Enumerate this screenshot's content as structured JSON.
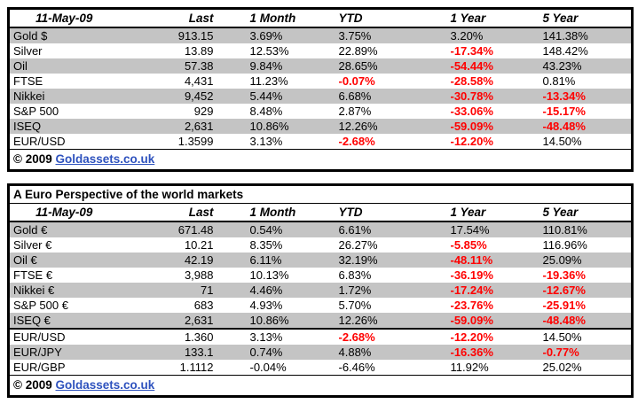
{
  "colors": {
    "negative_red": "#ff0000",
    "row_band_gray": "#c4c4c4",
    "link_blue": "#2e52be",
    "border_black": "#000000"
  },
  "chart_data": [
    {
      "type": "table",
      "name": "world-markets-usd",
      "columns": [
        "11-May-09",
        "Last",
        "1 Month",
        "YTD",
        "1 Year",
        "5 Year"
      ],
      "rows": [
        {
          "cells": [
            "Gold $",
            "913.15",
            "3.69%",
            "3.75%",
            "3.20%",
            "141.38%"
          ],
          "red": []
        },
        {
          "cells": [
            "Silver",
            "13.89",
            "12.53%",
            "22.89%",
            "-17.34%",
            "148.42%"
          ],
          "red": [
            4
          ]
        },
        {
          "cells": [
            "Oil",
            "57.38",
            "9.84%",
            "28.65%",
            "-54.44%",
            "43.23%"
          ],
          "red": [
            4
          ]
        },
        {
          "cells": [
            "FTSE",
            "4,431",
            "11.23%",
            "-0.07%",
            "-28.58%",
            "0.81%"
          ],
          "red": [
            3,
            4
          ]
        },
        {
          "cells": [
            "Nikkei",
            "9,452",
            "5.44%",
            "6.68%",
            "-30.78%",
            "-13.34%"
          ],
          "red": [
            4,
            5
          ]
        },
        {
          "cells": [
            "S&P 500",
            "929",
            "8.48%",
            "2.87%",
            "-33.06%",
            "-15.17%"
          ],
          "red": [
            4,
            5
          ]
        },
        {
          "cells": [
            "ISEQ",
            "2,631",
            "10.86%",
            "12.26%",
            "-59.09%",
            "-48.48%"
          ],
          "red": [
            4,
            5
          ]
        },
        {
          "cells": [
            "EUR/USD",
            "1.3599",
            "3.13%",
            "-2.68%",
            "-12.20%",
            "14.50%"
          ],
          "red": [
            3,
            4
          ]
        }
      ],
      "footer_copyright": "© 2009",
      "footer_link": "Goldassets.co.uk"
    },
    {
      "type": "table",
      "name": "world-markets-euro",
      "title": "A Euro Perspective of the world markets",
      "columns": [
        "11-May-09",
        "Last",
        "1 Month",
        "YTD",
        "1 Year",
        "5 Year"
      ],
      "rows": [
        {
          "cells": [
            "Gold €",
            "671.48",
            "0.54%",
            "6.61%",
            "17.54%",
            "110.81%"
          ],
          "red": []
        },
        {
          "cells": [
            "Silver €",
            "10.21",
            "8.35%",
            "26.27%",
            "-5.85%",
            "116.96%"
          ],
          "red": [
            4
          ]
        },
        {
          "cells": [
            "Oil €",
            "42.19",
            "6.11%",
            "32.19%",
            "-48.11%",
            "25.09%"
          ],
          "red": [
            4
          ]
        },
        {
          "cells": [
            "FTSE €",
            "3,988",
            "10.13%",
            "6.83%",
            "-36.19%",
            "-19.36%"
          ],
          "red": [
            4,
            5
          ]
        },
        {
          "cells": [
            "Nikkei €",
            "71",
            "4.46%",
            "1.72%",
            "-17.24%",
            "-12.67%"
          ],
          "red": [
            4,
            5
          ]
        },
        {
          "cells": [
            "S&P 500 €",
            "683",
            "4.93%",
            "5.70%",
            "-23.76%",
            "-25.91%"
          ],
          "red": [
            4,
            5
          ]
        },
        {
          "cells": [
            "ISEQ €",
            "2,631",
            "10.86%",
            "12.26%",
            "-59.09%",
            "-48.48%"
          ],
          "red": [
            4,
            5
          ]
        },
        {
          "cells": [
            "EUR/USD",
            "1.360",
            "3.13%",
            "-2.68%",
            "-12.20%",
            "14.50%"
          ],
          "red": [
            3,
            4
          ],
          "sep": true
        },
        {
          "cells": [
            "EUR/JPY",
            "133.1",
            "0.74%",
            "4.88%",
            "-16.36%",
            "-0.77%"
          ],
          "red": [
            4,
            5
          ]
        },
        {
          "cells": [
            "EUR/GBP",
            "1.1112",
            "-0.04%",
            "-6.46%",
            "11.92%",
            "25.02%"
          ],
          "red": []
        }
      ],
      "footer_copyright": "© 2009",
      "footer_link": "Goldassets.co.uk"
    }
  ]
}
